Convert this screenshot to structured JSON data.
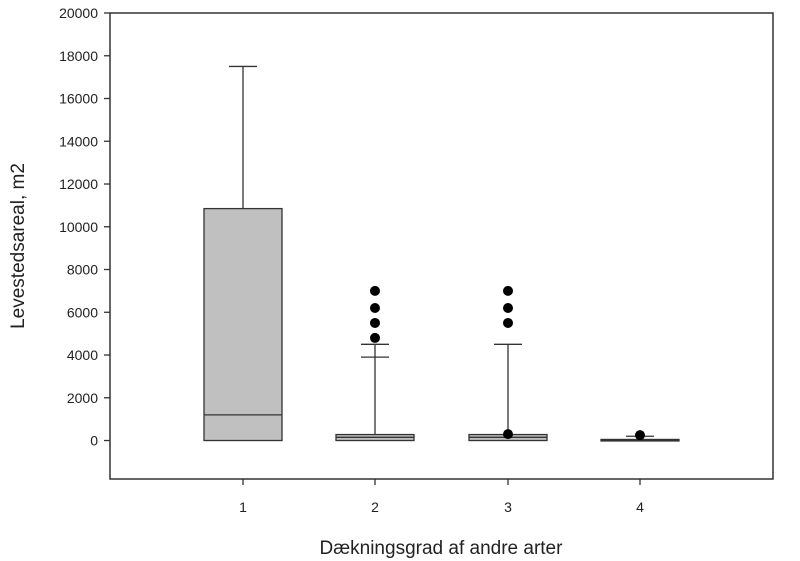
{
  "chart_data": {
    "type": "box",
    "title": "",
    "xlabel": "Dækningsgrad af andre arter",
    "ylabel": "Levestedsareal, m2",
    "ylim": [
      -1800,
      20000
    ],
    "y_ticks": [
      0,
      2000,
      4000,
      6000,
      8000,
      10000,
      12000,
      14000,
      16000,
      18000,
      20000
    ],
    "y_tick_labels": [
      "0",
      "2000",
      "4000",
      "6000",
      "8000",
      "10000",
      "12000",
      "14000",
      "16000",
      "18000",
      "20000"
    ],
    "categories": [
      "1",
      "2",
      "3",
      "4"
    ],
    "boxes": [
      {
        "category": "1",
        "whisker_low": 0,
        "q1": 0,
        "median": 1200,
        "q3": 10850,
        "whisker_high": 17500,
        "outliers": []
      },
      {
        "category": "2",
        "whisker_low": 0,
        "q1": 0,
        "median": 150,
        "q3": 280,
        "whisker_high": 4500,
        "cap_extra": 3900,
        "outliers": [
          4800,
          5500,
          6200,
          7000
        ]
      },
      {
        "category": "3",
        "whisker_low": 0,
        "q1": 0,
        "median": 150,
        "q3": 280,
        "whisker_high": 4500,
        "outliers": [
          300,
          5500,
          6200,
          7000
        ]
      },
      {
        "category": "4",
        "whisker_low": 0,
        "q1": 0,
        "median": 0,
        "q3": 50,
        "whisker_high": 200,
        "outliers": [
          250
        ]
      }
    ],
    "grid": false,
    "legend": "none",
    "colors": {
      "box_fill": "#c0c0c0",
      "stroke": "#333333",
      "outlier": "#000000"
    }
  }
}
